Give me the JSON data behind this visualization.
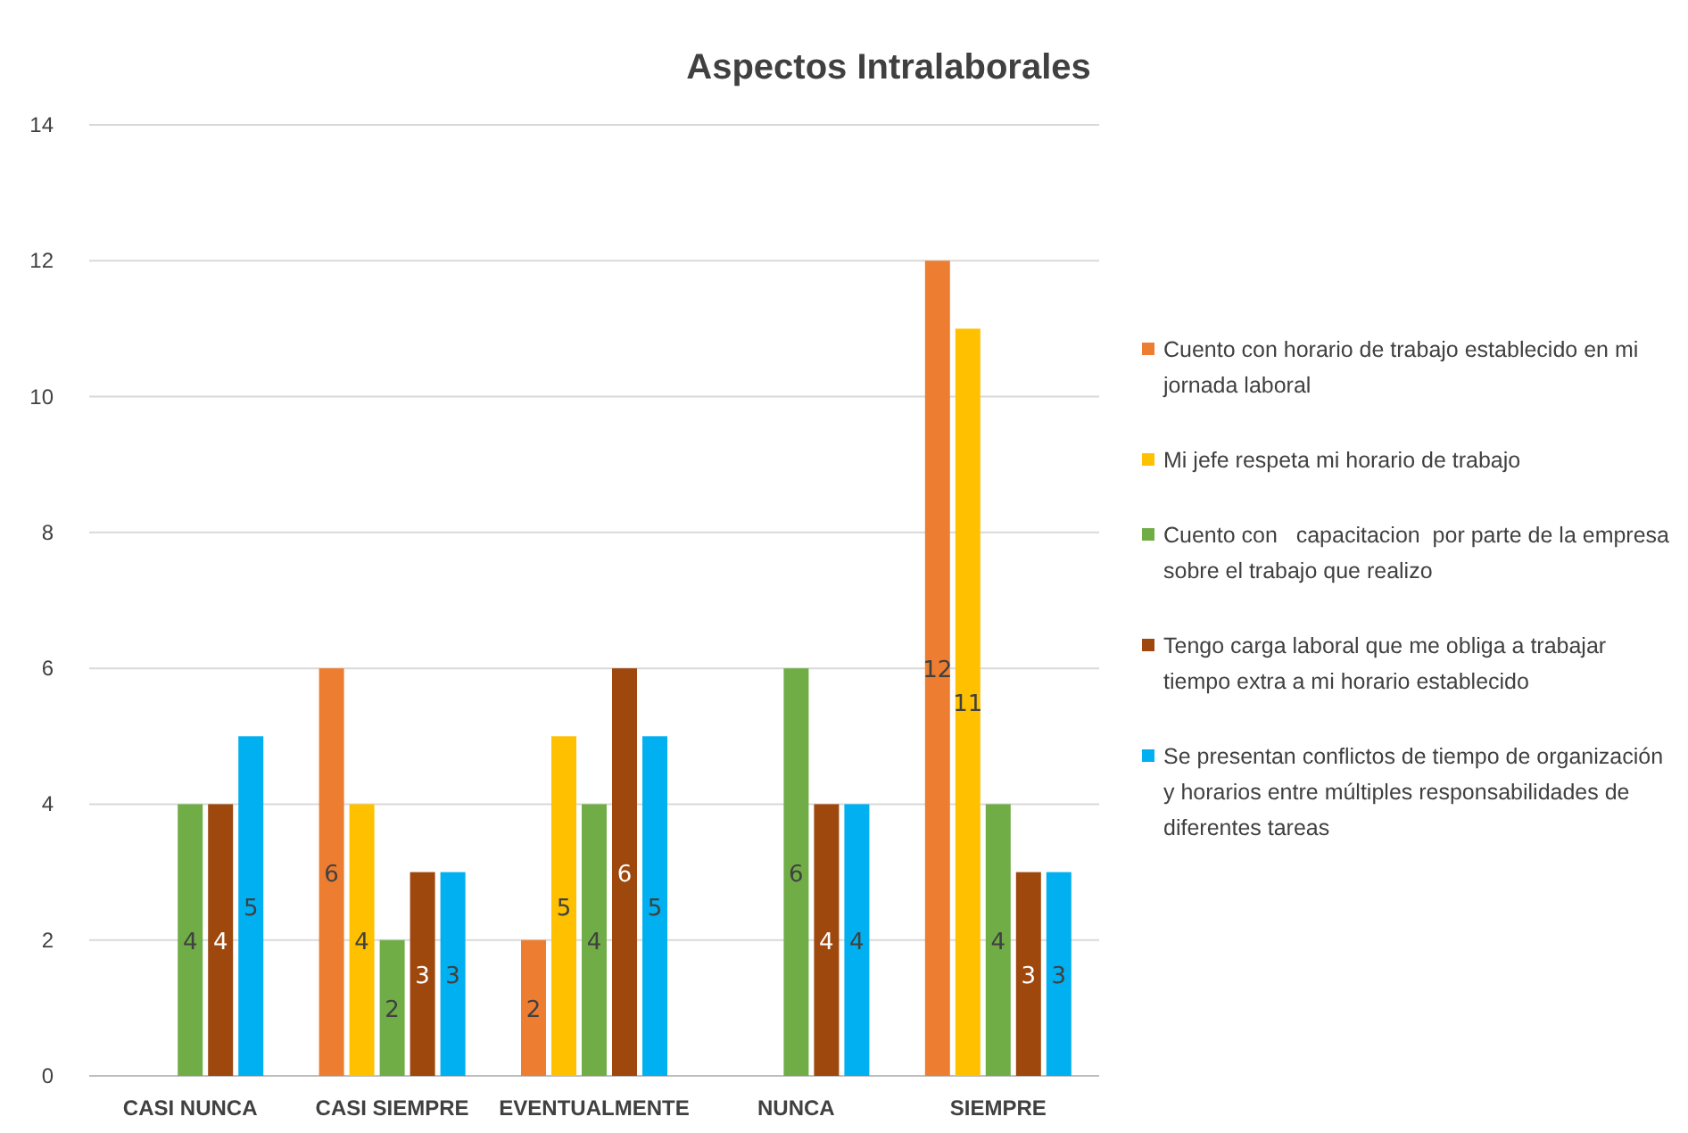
{
  "chart_data": {
    "type": "bar",
    "title": "Aspectos Intralaborales",
    "categories": [
      "CASI NUNCA",
      "CASI SIEMPRE",
      "EVENTUALMENTE",
      "NUNCA",
      "SIEMPRE"
    ],
    "series": [
      {
        "name": "Cuento con horario de trabajo establecido en mi jornada laboral",
        "color": "#ed7d31",
        "values": [
          null,
          6,
          2,
          null,
          12
        ]
      },
      {
        "name": "Mi jefe respeta mi horario de trabajo",
        "color": "#ffc000",
        "values": [
          null,
          4,
          5,
          null,
          11
        ]
      },
      {
        "name": "Cuento con   capacitacion  por parte de la empresa sobre el trabajo que realizo",
        "color": "#70ad47",
        "values": [
          4,
          2,
          4,
          6,
          4
        ]
      },
      {
        "name": "Tengo carga laboral que me obliga a trabajar tiempo extra a mi horario establecido",
        "color": "#9e480e",
        "values": [
          4,
          3,
          6,
          4,
          3
        ]
      },
      {
        "name": "Se presentan conflictos de tiempo de organización y horarios entre múltiples responsabilidades de diferentes tareas",
        "color": "#00b0f0",
        "values": [
          5,
          3,
          5,
          4,
          3
        ]
      }
    ],
    "ylim": [
      0,
      14
    ],
    "yticks": [
      0,
      2,
      4,
      6,
      8,
      10,
      12,
      14
    ],
    "grid": "y",
    "legend": "right",
    "data_labels": true
  }
}
